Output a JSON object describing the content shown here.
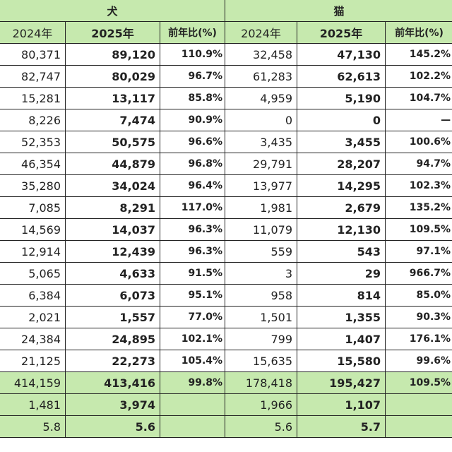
{
  "groups": [
    "犬",
    "猫"
  ],
  "columns": [
    "2024年",
    "2025年",
    "前年比(%)",
    "2024年",
    "2025年",
    "前年比(%)"
  ],
  "rows": [
    [
      "80,371",
      "89,120",
      "110.9%",
      "32,458",
      "47,130",
      "145.2%"
    ],
    [
      "82,747",
      "80,029",
      "96.7%",
      "61,283",
      "62,613",
      "102.2%"
    ],
    [
      "15,281",
      "13,117",
      "85.8%",
      "4,959",
      "5,190",
      "104.7%"
    ],
    [
      "8,226",
      "7,474",
      "90.9%",
      "0",
      "0",
      "—"
    ],
    [
      "52,353",
      "50,575",
      "96.6%",
      "3,435",
      "3,455",
      "100.6%"
    ],
    [
      "46,354",
      "44,879",
      "96.8%",
      "29,791",
      "28,207",
      "94.7%"
    ],
    [
      "35,280",
      "34,024",
      "96.4%",
      "13,977",
      "14,295",
      "102.3%"
    ],
    [
      "7,085",
      "8,291",
      "117.0%",
      "1,981",
      "2,679",
      "135.2%"
    ],
    [
      "14,569",
      "14,037",
      "96.3%",
      "11,079",
      "12,130",
      "109.5%"
    ],
    [
      "12,914",
      "12,439",
      "96.3%",
      "559",
      "543",
      "97.1%"
    ],
    [
      "5,065",
      "4,633",
      "91.5%",
      "3",
      "29",
      "966.7%"
    ],
    [
      "6,384",
      "6,073",
      "95.1%",
      "958",
      "814",
      "85.0%"
    ],
    [
      "2,021",
      "1,557",
      "77.0%",
      "1,501",
      "1,355",
      "90.3%"
    ],
    [
      "24,384",
      "24,895",
      "102.1%",
      "799",
      "1,407",
      "176.1%"
    ],
    [
      "21,125",
      "22,273",
      "105.4%",
      "15,635",
      "15,580",
      "99.6%"
    ]
  ],
  "summary": [
    [
      "414,159",
      "413,416",
      "99.8%",
      "178,418",
      "195,427",
      "109.5%"
    ],
    [
      "1,481",
      "3,974",
      "",
      "1,966",
      "1,107",
      ""
    ],
    [
      "5.8",
      "5.6",
      "",
      "5.6",
      "5.7",
      ""
    ]
  ],
  "colors": {
    "header_green": "#c6e9ae",
    "border": "#222222"
  }
}
